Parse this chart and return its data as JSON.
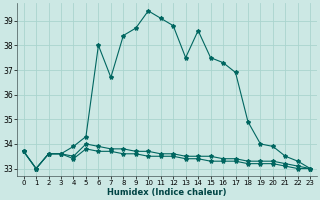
{
  "xlabel": "Humidex (Indice chaleur)",
  "bg_color": "#cce8e4",
  "grid_color": "#aad4ce",
  "line_color": "#006660",
  "xlim": [
    -0.5,
    23.5
  ],
  "ylim": [
    32.7,
    39.7
  ],
  "yticks": [
    33,
    34,
    35,
    36,
    37,
    38,
    39
  ],
  "xticks": [
    0,
    1,
    2,
    3,
    4,
    5,
    6,
    7,
    8,
    9,
    10,
    11,
    12,
    13,
    14,
    15,
    16,
    17,
    18,
    19,
    20,
    21,
    22,
    23
  ],
  "series1": [
    33.7,
    33.0,
    33.6,
    33.6,
    33.9,
    34.3,
    38.0,
    36.7,
    38.4,
    38.7,
    39.4,
    39.1,
    38.8,
    37.5,
    38.6,
    37.5,
    37.3,
    36.9,
    34.9,
    34.0,
    33.9,
    33.5,
    33.3,
    33.0
  ],
  "series2": [
    33.7,
    33.0,
    33.6,
    33.6,
    33.5,
    34.0,
    33.9,
    33.8,
    33.8,
    33.7,
    33.7,
    33.6,
    33.6,
    33.5,
    33.5,
    33.5,
    33.4,
    33.4,
    33.3,
    33.3,
    33.3,
    33.2,
    33.1,
    33.0
  ],
  "series3": [
    33.7,
    33.0,
    33.6,
    33.6,
    33.4,
    33.8,
    33.7,
    33.7,
    33.6,
    33.6,
    33.5,
    33.5,
    33.5,
    33.4,
    33.4,
    33.3,
    33.3,
    33.3,
    33.2,
    33.2,
    33.2,
    33.1,
    33.0,
    33.0
  ]
}
